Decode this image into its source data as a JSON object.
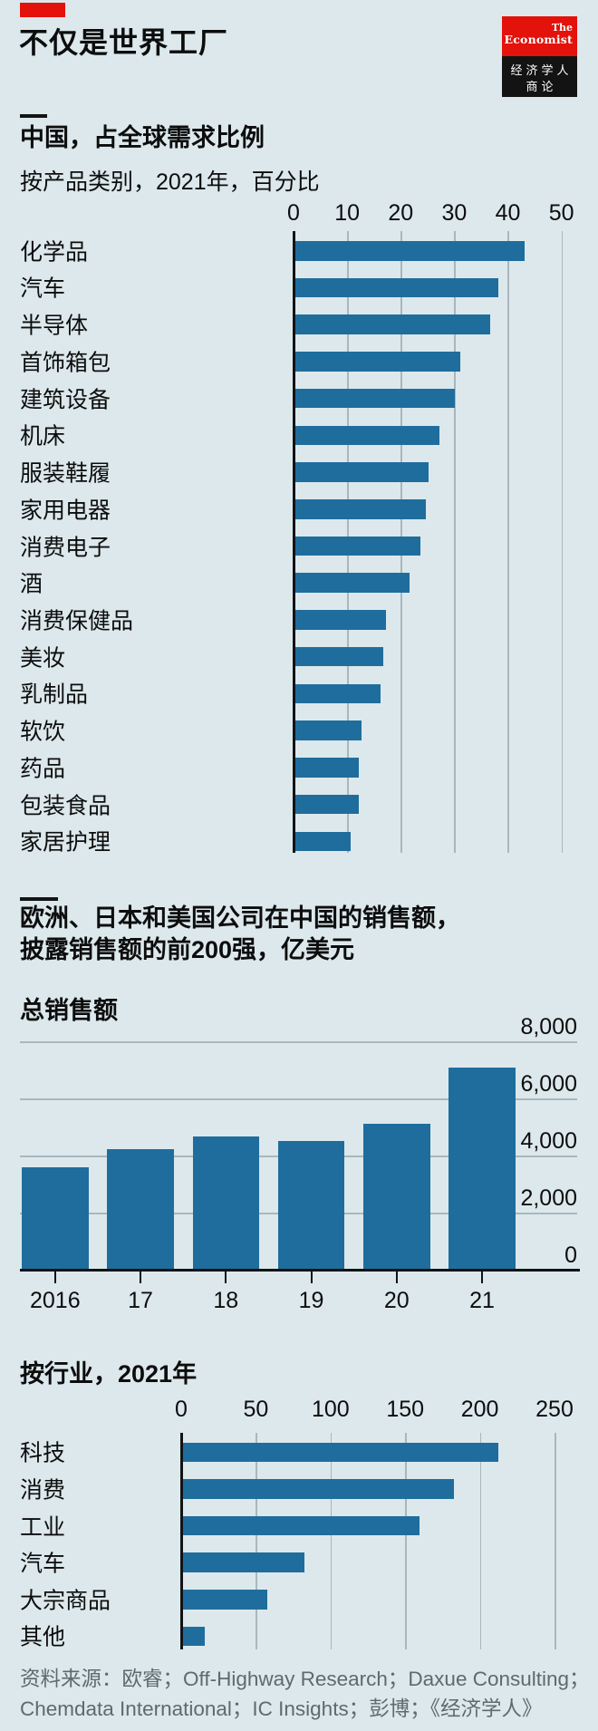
{
  "page": {
    "background": "#dce8ec",
    "accent_red": "#e3120b",
    "bar_blue": "#1f6d9d",
    "grid_color": "#a9b7bd",
    "axis_color": "#111315",
    "text_color": "#0d0d0d",
    "source_color": "#5f696e"
  },
  "header": {
    "title": "不仅是世界工厂",
    "logo": {
      "en_line1": "The",
      "en_line2": "Economist",
      "cn_line1": "经济学人",
      "cn_line2": "商论"
    }
  },
  "section2": {
    "line1": "欧洲、日本和美国公司在中国的销售额，",
    "line2": "披露销售额的前200强，亿美元"
  },
  "source": {
    "line1": "资料来源：欧睿；Off-Highway Research；Daxue Consulting；",
    "line2": "Chemdata International；IC Insights；彭博；《经济学人》"
  },
  "chart_data": [
    {
      "id": "china-share-of-global-demand",
      "type": "bar",
      "orientation": "horizontal",
      "title": "中国，占全球需求比例",
      "subtitle": "按产品类别，2021年，百分比",
      "categories": [
        "化学品",
        "汽车",
        "半导体",
        "首饰箱包",
        "建筑设备",
        "机床",
        "服装鞋履",
        "家用电器",
        "消费电子",
        "酒",
        "消费保健品",
        "美妆",
        "乳制品",
        "软饮",
        "药品",
        "包装食品",
        "家居护理"
      ],
      "values": [
        43,
        38,
        36.5,
        31,
        30,
        27,
        25,
        24.5,
        23.5,
        21.5,
        17,
        16.5,
        16,
        12.5,
        12,
        12,
        10.5
      ],
      "xlim": [
        0,
        50
      ],
      "xticks": [
        0,
        10,
        20,
        30,
        40,
        50
      ],
      "grid": true,
      "legend": "none"
    },
    {
      "id": "total-sales",
      "type": "bar",
      "orientation": "vertical",
      "title": "总销售额",
      "categories": [
        "2016",
        "17",
        "18",
        "19",
        "20",
        "21"
      ],
      "values": [
        3600,
        4230,
        4660,
        4530,
        5120,
        7090
      ],
      "ylim": [
        0,
        8000
      ],
      "yticks": [
        0,
        2000,
        4000,
        6000,
        8000
      ],
      "ytick_labels": [
        "0",
        "2,000",
        "4,000",
        "6,000",
        "8,000"
      ],
      "grid": true,
      "legend": "none"
    },
    {
      "id": "sales-by-industry",
      "type": "bar",
      "orientation": "horizontal",
      "title": "按行业，2021年",
      "categories": [
        "科技",
        "消费",
        "工业",
        "汽车",
        "大宗商品",
        "其他"
      ],
      "values": [
        212,
        182,
        159,
        82,
        57,
        15
      ],
      "xlim": [
        0,
        250
      ],
      "xticks": [
        0,
        50,
        100,
        150,
        200,
        250
      ],
      "grid": true,
      "legend": "none"
    }
  ]
}
